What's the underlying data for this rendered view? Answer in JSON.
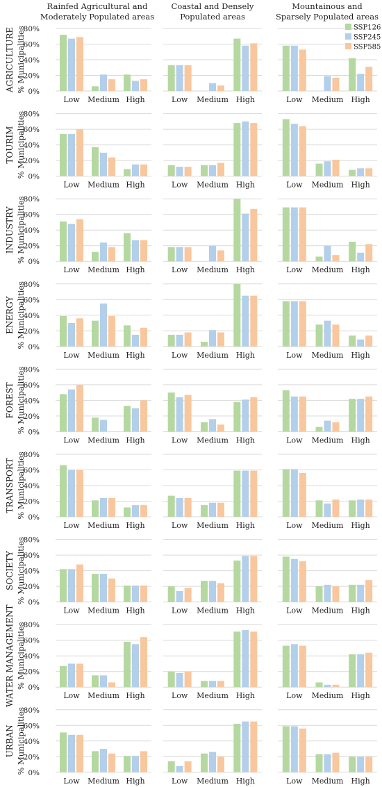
{
  "figure": {
    "column_headers": [
      [
        "Rainfed Agricultural and",
        "Moderately Populated areas"
      ],
      [
        "Coastal and Densely",
        "Populated areas"
      ],
      [
        "Mountainous and",
        "Sparsely Populated areas"
      ]
    ],
    "y_axis_label": "% Municipalities",
    "legend": [
      "SSP126",
      "SSP245",
      "SSP585"
    ],
    "colors": {
      "SSP126": "#b5d8a0",
      "SSP245": "#b3cfe9",
      "SSP585": "#f9c79d",
      "axis": "#d9d9d9"
    }
  },
  "chart_data": {
    "type": "bar",
    "categories": [
      "Low",
      "Medium",
      "High"
    ],
    "ylim": [
      0,
      80
    ],
    "yticks": [
      "0%",
      "20%",
      "40%",
      "60%",
      "80%"
    ],
    "series_names": [
      "SSP126",
      "SSP245",
      "SSP585"
    ],
    "sectors": [
      {
        "name": "AGRICULTURE",
        "panels": [
          [
            [
              72,
              67,
              69
            ],
            [
              6,
              21,
              15
            ],
            [
              21,
              13,
              15
            ]
          ],
          [
            [
              33,
              33,
              33
            ],
            [
              0,
              10,
              7
            ],
            [
              67,
              58,
              61
            ]
          ],
          [
            [
              58,
              58,
              53
            ],
            [
              0,
              19,
              17
            ],
            [
              42,
              22,
              31
            ]
          ]
        ]
      },
      {
        "name": "TOURIM",
        "panels": [
          [
            [
              54,
              54,
              60
            ],
            [
              37,
              30,
              24
            ],
            [
              9,
              15,
              15
            ]
          ],
          [
            [
              14,
              12,
              12
            ],
            [
              14,
              14,
              17
            ],
            [
              68,
              70,
              68
            ]
          ],
          [
            [
              73,
              67,
              64
            ],
            [
              16,
              19,
              21
            ],
            [
              8,
              10,
              10
            ]
          ]
        ]
      },
      {
        "name": "INDUSTRY",
        "panels": [
          [
            [
              51,
              48,
              54
            ],
            [
              12,
              24,
              18
            ],
            [
              36,
              27,
              27
            ]
          ],
          [
            [
              18,
              18,
              18
            ],
            [
              0,
              20,
              14
            ],
            [
              80,
              61,
              67
            ]
          ],
          [
            [
              69,
              69,
              69
            ],
            [
              6,
              20,
              8
            ],
            [
              25,
              11,
              22
            ]
          ]
        ]
      },
      {
        "name": "ENERGY",
        "panels": [
          [
            [
              39,
              30,
              36
            ],
            [
              33,
              55,
              39
            ],
            [
              27,
              15,
              24
            ]
          ],
          [
            [
              15,
              15,
              18
            ],
            [
              6,
              21,
              18
            ],
            [
              80,
              65,
              65
            ]
          ],
          [
            [
              58,
              58,
              58
            ],
            [
              28,
              33,
              28
            ],
            [
              14,
              9,
              14
            ]
          ]
        ]
      },
      {
        "name": "FOREST",
        "panels": [
          [
            [
              48,
              54,
              60
            ],
            [
              18,
              15,
              0
            ],
            [
              33,
              30,
              40
            ]
          ],
          [
            [
              50,
              44,
              47
            ],
            [
              12,
              16,
              9
            ],
            [
              38,
              41,
              44
            ]
          ],
          [
            [
              53,
              45,
              45
            ],
            [
              6,
              14,
              12
            ],
            [
              42,
              42,
              45
            ]
          ]
        ]
      },
      {
        "name": "TRANSPORT",
        "panels": [
          [
            [
              66,
              60,
              60
            ],
            [
              21,
              24,
              24
            ],
            [
              12,
              15,
              15
            ]
          ],
          [
            [
              27,
              24,
              24
            ],
            [
              15,
              18,
              18
            ],
            [
              59,
              59,
              59
            ]
          ],
          [
            [
              61,
              61,
              56
            ],
            [
              21,
              17,
              22
            ],
            [
              21,
              22,
              22
            ]
          ]
        ]
      },
      {
        "name": "SOCIETY",
        "panels": [
          [
            [
              42,
              42,
              48
            ],
            [
              36,
              36,
              30
            ],
            [
              21,
              21,
              21
            ]
          ],
          [
            [
              20,
              14,
              18
            ],
            [
              27,
              27,
              24
            ],
            [
              53,
              59,
              59
            ]
          ],
          [
            [
              58,
              55,
              52
            ],
            [
              20,
              22,
              20
            ],
            [
              22,
              22,
              28
            ]
          ]
        ]
      },
      {
        "name": "WATER MANAGEMENT",
        "panels": [
          [
            [
              27,
              30,
              30
            ],
            [
              15,
              15,
              6
            ],
            [
              58,
              55,
              64
            ]
          ],
          [
            [
              20,
              18,
              20
            ],
            [
              8,
              8,
              8
            ],
            [
              71,
              73,
              71
            ]
          ],
          [
            [
              53,
              55,
              53
            ],
            [
              6,
              3,
              3
            ],
            [
              42,
              42,
              44
            ]
          ]
        ]
      },
      {
        "name": "URBAN",
        "panels": [
          [
            [
              51,
              48,
              48
            ],
            [
              27,
              30,
              24
            ],
            [
              21,
              21,
              27
            ]
          ],
          [
            [
              14,
              8,
              14
            ],
            [
              24,
              26,
              20
            ],
            [
              62,
              65,
              65
            ]
          ],
          [
            [
              59,
              59,
              56
            ],
            [
              23,
              23,
              25
            ],
            [
              20,
              20,
              20
            ]
          ]
        ]
      }
    ]
  }
}
